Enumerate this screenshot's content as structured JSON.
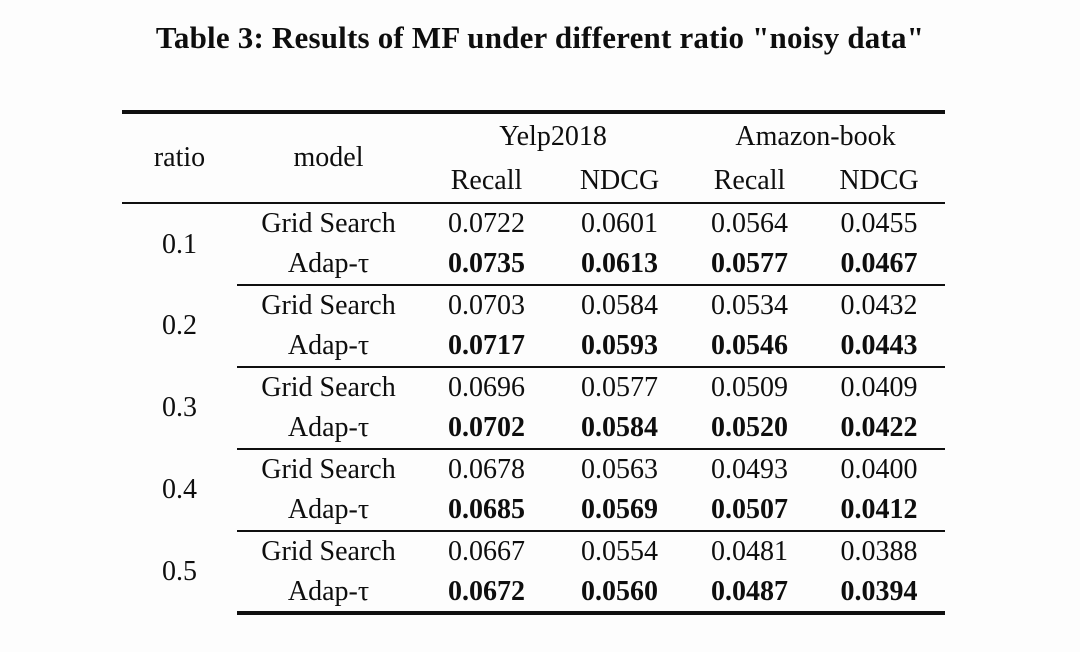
{
  "title": "Table 3: Results of MF under different ratio \"noisy data\"",
  "table": {
    "header": {
      "ratio": "ratio",
      "model": "model"
    },
    "groups": [
      {
        "label": "Yelp2018",
        "metrics": [
          "Recall",
          "NDCG"
        ]
      },
      {
        "label": "Amazon-book",
        "metrics": [
          "Recall",
          "NDCG"
        ]
      }
    ],
    "rows": [
      {
        "ratio": "0.1",
        "models": [
          {
            "name": "Grid Search",
            "bold": false,
            "values": [
              "0.0722",
              "0.0601",
              "0.0564",
              "0.0455"
            ]
          },
          {
            "name": "Adap-τ",
            "bold": true,
            "values": [
              "0.0735",
              "0.0613",
              "0.0577",
              "0.0467"
            ]
          }
        ]
      },
      {
        "ratio": "0.2",
        "models": [
          {
            "name": "Grid Search",
            "bold": false,
            "values": [
              "0.0703",
              "0.0584",
              "0.0534",
              "0.0432"
            ]
          },
          {
            "name": "Adap-τ",
            "bold": true,
            "values": [
              "0.0717",
              "0.0593",
              "0.0546",
              "0.0443"
            ]
          }
        ]
      },
      {
        "ratio": "0.3",
        "models": [
          {
            "name": "Grid Search",
            "bold": false,
            "values": [
              "0.0696",
              "0.0577",
              "0.0509",
              "0.0409"
            ]
          },
          {
            "name": "Adap-τ",
            "bold": true,
            "values": [
              "0.0702",
              "0.0584",
              "0.0520",
              "0.0422"
            ]
          }
        ]
      },
      {
        "ratio": "0.4",
        "models": [
          {
            "name": "Grid Search",
            "bold": false,
            "values": [
              "0.0678",
              "0.0563",
              "0.0493",
              "0.0400"
            ]
          },
          {
            "name": "Adap-τ",
            "bold": true,
            "values": [
              "0.0685",
              "0.0569",
              "0.0507",
              "0.0412"
            ]
          }
        ]
      },
      {
        "ratio": "0.5",
        "models": [
          {
            "name": "Grid Search",
            "bold": false,
            "values": [
              "0.0667",
              "0.0554",
              "0.0481",
              "0.0388"
            ]
          },
          {
            "name": "Adap-τ",
            "bold": true,
            "values": [
              "0.0672",
              "0.0560",
              "0.0487",
              "0.0394"
            ]
          }
        ]
      }
    ]
  },
  "colors": {
    "text": "#0e0e0e",
    "rule": "#101010",
    "background": "#fdfdfd"
  }
}
